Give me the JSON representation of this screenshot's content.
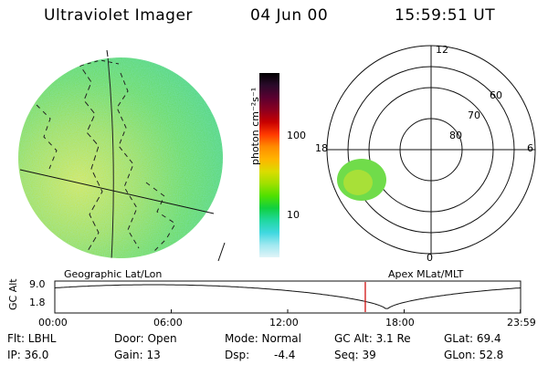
{
  "header": {
    "title": "Ultraviolet Imager",
    "date": "04 Jun 00",
    "time": "15:59:51 UT"
  },
  "left_panel": {
    "label": "Geographic Lat/Lon"
  },
  "colorbar": {
    "label": "photon cm⁻²s⁻¹",
    "ticks": [
      {
        "label": "100",
        "value": 100
      },
      {
        "label": "10",
        "value": 10
      }
    ],
    "scale": "log",
    "colors": [
      "#000000",
      "#2a0a2a",
      "#5a0030",
      "#8c0020",
      "#c80000",
      "#ff3a00",
      "#ff8c00",
      "#ffb400",
      "#dcdc00",
      "#a0e000",
      "#50e000",
      "#10d040",
      "#20d8a0",
      "#40d8e0",
      "#a0e8f0",
      "#e0f4f8"
    ]
  },
  "polar_plot": {
    "label": "Apex MLat/MLT",
    "time_labels": [
      {
        "label": "12",
        "angle": 90
      },
      {
        "label": "18",
        "angle": 180
      },
      {
        "label": "6",
        "angle": 0
      },
      {
        "label": "0",
        "angle": 270
      }
    ],
    "lat_labels": [
      {
        "label": "60",
        "mlat": 60
      },
      {
        "label": "70",
        "mlat": 70
      },
      {
        "label": "80",
        "mlat": 80
      }
    ]
  },
  "altitude_plot": {
    "ylabel": "GC Alt",
    "y_ticks": [
      {
        "label": "9.0",
        "value": 9.0
      },
      {
        "label": "1.8",
        "value": 1.8
      }
    ],
    "x_ticks": [
      {
        "label": "00:00",
        "hour": 0
      },
      {
        "label": "06:00",
        "hour": 6
      },
      {
        "label": "12:00",
        "hour": 12
      },
      {
        "label": "18:00",
        "hour": 18
      },
      {
        "label": "23:59",
        "hour": 23.983
      }
    ],
    "current_hour": 15.9975,
    "marker_color": "#d01010"
  },
  "info": {
    "filter": "Flt: LBHL",
    "ip": "IP: 36.0",
    "door": "Door: Open",
    "gain": "Gain: 13",
    "mode": "Mode: Normal",
    "dsp": "Dsp:",
    "dsp_value": "-4.4",
    "gc_alt": "GC Alt: 3.1 Re",
    "seq": "Seq: 39",
    "glat": "GLat: 69.4",
    "glon": "GLon: 52.8"
  }
}
